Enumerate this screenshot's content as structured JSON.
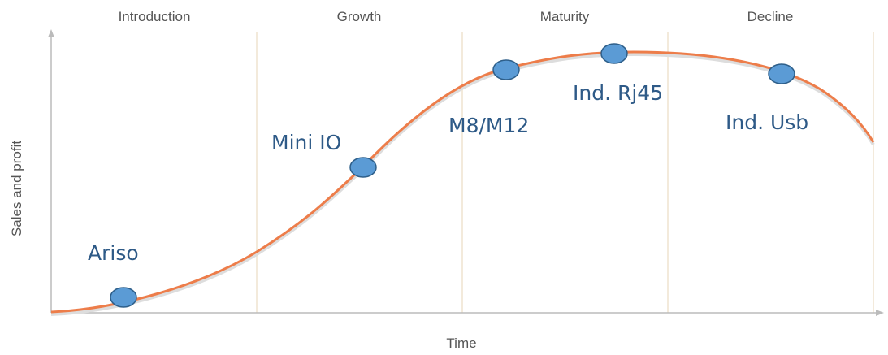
{
  "stages": [
    "Introduction",
    "Growth",
    "Maturity",
    "Decline"
  ],
  "axes": {
    "y": "Sales and profit",
    "x": "Time"
  },
  "nodes": [
    {
      "label": "Ariso"
    },
    {
      "label": "Mini IO"
    },
    {
      "label": "M8/M12"
    },
    {
      "label": "Ind. Rj45"
    },
    {
      "label": "Ind. Usb"
    }
  ]
}
